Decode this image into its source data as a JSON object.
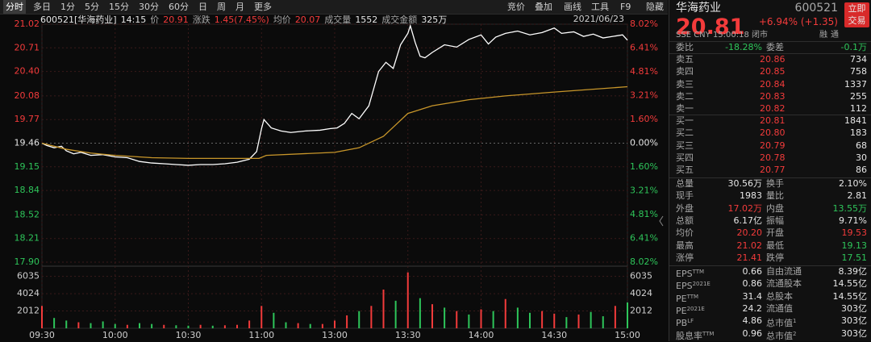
{
  "toolbar": {
    "tabs": [
      "分时",
      "多日",
      "1分",
      "5分",
      "15分",
      "30分",
      "60分",
      "日",
      "周",
      "月",
      "更多"
    ],
    "tools": [
      "竞价",
      "叠加",
      "画线",
      "工具",
      "F9",
      "隐藏"
    ]
  },
  "chart_data": {
    "type": "line",
    "header": [
      "600521[华海药业]",
      "14:15",
      "价",
      "20.91",
      "涨跌",
      "1.45(7.45%)",
      "均价",
      "20.07",
      "成交量",
      "1552",
      "成交金额",
      "325万"
    ],
    "date": "2021/06/23",
    "xlim": [
      0,
      240
    ],
    "xticks": [
      {
        "value": 0,
        "label": "09:30"
      },
      {
        "value": 30,
        "label": "10:00"
      },
      {
        "value": 60,
        "label": "10:30"
      },
      {
        "value": 90,
        "label": "11:00"
      },
      {
        "value": 120,
        "label": "13:00"
      },
      {
        "value": 150,
        "label": "13:30"
      },
      {
        "value": 180,
        "label": "14:00"
      },
      {
        "value": 210,
        "label": "14:30"
      },
      {
        "value": 240,
        "label": "15:00"
      }
    ],
    "ylim": [
      17.9,
      21.02
    ],
    "yticks": [
      21.02,
      20.71,
      {
        "value": 20.4,
        "label": "20.40"
      },
      20.08,
      19.77,
      19.46,
      19.15,
      18.84,
      18.52,
      18.21,
      {
        "value": 17.9,
        "label": "17.90"
      }
    ],
    "y2lim": [
      -8.02,
      8.02
    ],
    "y2ticks": [
      {
        "value": 8.02,
        "label": "8.02%"
      },
      {
        "value": 6.41,
        "label": "6.41%"
      },
      {
        "value": 4.81,
        "label": "4.81%"
      },
      {
        "value": 3.21,
        "label": "3.21%"
      },
      {
        "value": 1.6,
        "label": "1.60%"
      },
      {
        "value": 0,
        "label": "0.00%"
      },
      {
        "value": -1.6,
        "label": "1.60%"
      },
      {
        "value": -3.21,
        "label": "3.21%"
      },
      {
        "value": -4.81,
        "label": "4.81%"
      },
      {
        "value": -6.41,
        "label": "6.41%"
      },
      {
        "value": -8.02,
        "label": "8.02%"
      }
    ],
    "series": [
      {
        "color": "#ffffff",
        "x": [
          0,
          2,
          5,
          8,
          10,
          13,
          16,
          20,
          25,
          30,
          35,
          40,
          45,
          50,
          55,
          60,
          65,
          70,
          75,
          80,
          85,
          88,
          90,
          91,
          94,
          98,
          102,
          108,
          114,
          118,
          121,
          124,
          127,
          130,
          134,
          138,
          141,
          144,
          147,
          150,
          151,
          153,
          155,
          157,
          160,
          165,
          170,
          175,
          180,
          183,
          186,
          190,
          195,
          200,
          205,
          210,
          213,
          218,
          222,
          226,
          230,
          234,
          238,
          240
        ],
        "values": [
          19.46,
          19.43,
          19.4,
          19.42,
          19.36,
          19.32,
          19.34,
          19.3,
          19.31,
          19.28,
          19.27,
          19.22,
          19.2,
          19.19,
          19.18,
          19.17,
          19.18,
          19.18,
          19.19,
          19.21,
          19.25,
          19.35,
          19.65,
          19.77,
          19.66,
          19.62,
          19.6,
          19.62,
          19.63,
          19.65,
          19.66,
          19.72,
          19.85,
          19.78,
          19.95,
          20.4,
          20.52,
          20.44,
          20.75,
          20.9,
          21.0,
          20.78,
          20.6,
          20.58,
          20.65,
          20.75,
          20.72,
          20.82,
          20.88,
          20.76,
          20.85,
          20.9,
          20.93,
          20.88,
          20.91,
          20.97,
          20.9,
          20.92,
          20.86,
          20.89,
          20.84,
          20.86,
          20.88,
          20.81
        ]
      },
      {
        "color": "#c8962a",
        "x": [
          0,
          10,
          20,
          30,
          45,
          60,
          89,
          92,
          120,
          130,
          140,
          145,
          150,
          160,
          175,
          190,
          210,
          240
        ],
        "values": [
          19.46,
          19.38,
          19.33,
          19.3,
          19.27,
          19.26,
          19.26,
          19.3,
          19.34,
          19.4,
          19.55,
          19.7,
          19.85,
          19.95,
          20.03,
          20.08,
          20.13,
          20.2
        ]
      }
    ],
    "volume": {
      "ylim": [
        0,
        6750
      ],
      "yticks": [
        2012,
        4024,
        6035
      ],
      "x": [
        0,
        5,
        10,
        15,
        20,
        25,
        30,
        35,
        40,
        45,
        50,
        55,
        60,
        65,
        70,
        75,
        80,
        85,
        90,
        95,
        100,
        105,
        110,
        115,
        120,
        125,
        130,
        135,
        140,
        145,
        150,
        155,
        160,
        165,
        170,
        175,
        180,
        185,
        190,
        195,
        200,
        205,
        210,
        215,
        220,
        225,
        230,
        235,
        240
      ],
      "values": [
        2600,
        1200,
        900,
        700,
        600,
        800,
        500,
        400,
        600,
        500,
        400,
        350,
        300,
        400,
        300,
        350,
        400,
        900,
        2600,
        1800,
        700,
        600,
        500,
        500,
        900,
        1500,
        2000,
        2600,
        4500,
        3200,
        6500,
        3500,
        2800,
        2400,
        2000,
        1600,
        2200,
        2000,
        3400,
        2400,
        1800,
        2000,
        1700,
        1300,
        1600,
        1900,
        1400,
        2600,
        3000
      ],
      "colors": [
        "#f33b3b",
        "#2ec55a",
        "#2ec55a",
        "#f33b3b",
        "#2ec55a",
        "#2ec55a",
        "#2ec55a",
        "#f33b3b",
        "#2ec55a",
        "#2ec55a",
        "#f33b3b",
        "#2ec55a",
        "#2ec55a",
        "#f33b3b",
        "#2ec55a",
        "#f33b3b",
        "#f33b3b",
        "#f33b3b",
        "#f33b3b",
        "#2ec55a",
        "#2ec55a",
        "#f33b3b",
        "#2ec55a",
        "#f33b3b",
        "#f33b3b",
        "#f33b3b",
        "#2ec55a",
        "#f33b3b",
        "#f33b3b",
        "#2ec55a",
        "#f33b3b",
        "#2ec55a",
        "#f33b3b",
        "#2ec55a",
        "#f33b3b",
        "#2ec55a",
        "#f33b3b",
        "#2ec55a",
        "#f33b3b",
        "#2ec55a",
        "#2ec55a",
        "#f33b3b",
        "#f33b3b",
        "#2ec55a",
        "#f33b3b",
        "#2ec55a",
        "#2ec55a",
        "#f33b3b",
        "#2ec55a"
      ]
    }
  },
  "panel": {
    "name": "华海药业",
    "code": "600521",
    "price": "20.81",
    "change": "+6.94% (+1.35)",
    "button": [
      "立即",
      "交易"
    ],
    "meta": "SSE CNY 15:00:18 闭市",
    "tags": [
      "融",
      "通"
    ],
    "ratio": [
      "委比",
      "-18.28%",
      "委差",
      "-0.1万"
    ],
    "asks": [
      [
        "卖五",
        "20.86",
        "734"
      ],
      [
        "卖四",
        "20.85",
        "758"
      ],
      [
        "卖三",
        "20.84",
        "1337"
      ],
      [
        "卖二",
        "20.83",
        "255"
      ],
      [
        "卖一",
        "20.82",
        "112"
      ]
    ],
    "bids": [
      [
        "买一",
        "20.81",
        "1841"
      ],
      [
        "买二",
        "20.80",
        "183"
      ],
      [
        "买三",
        "20.79",
        "68"
      ],
      [
        "买四",
        "20.78",
        "30"
      ],
      [
        "买五",
        "20.77",
        "86"
      ]
    ],
    "stats": [
      [
        "总量",
        "30.56万",
        "换手",
        "2.10%"
      ],
      [
        "现手",
        "1983",
        "量比",
        "2.81"
      ],
      [
        "外盘",
        "17.02万",
        "内盘",
        "13.55万"
      ],
      [
        "总额",
        "6.17亿",
        "振幅",
        "9.71%"
      ],
      [
        "均价",
        "20.20",
        "开盘",
        "19.53"
      ],
      [
        "最高",
        "21.02",
        "最低",
        "19.13"
      ],
      [
        "涨停",
        "21.41",
        "跌停",
        "17.51"
      ]
    ],
    "fund": [
      {
        "label": "EPS",
        "sup": "TTM",
        "value": "0.66",
        "label2": "自由流通",
        "value2": "8.39亿"
      },
      {
        "label": "EPS",
        "sup": "2021E",
        "value": "0.86",
        "label2": "流通股本",
        "value2": "14.55亿"
      },
      {
        "label": "PE",
        "sup": "TTM",
        "value": "31.4",
        "label2": "总股本",
        "value2": "14.55亿"
      },
      {
        "label": "PE",
        "sup": "2021E",
        "value": "24.2",
        "label2": "流通值",
        "value2": "303亿"
      },
      {
        "label": "PB",
        "sup": "LF",
        "value": "4.86",
        "label2": "总市值",
        "sup2": "1",
        "value2": "303亿"
      },
      {
        "label": "股息率",
        "sup": "TTM",
        "value": "0.96",
        "label2": "总市值",
        "sup2": "2",
        "value2": "303亿"
      }
    ]
  }
}
